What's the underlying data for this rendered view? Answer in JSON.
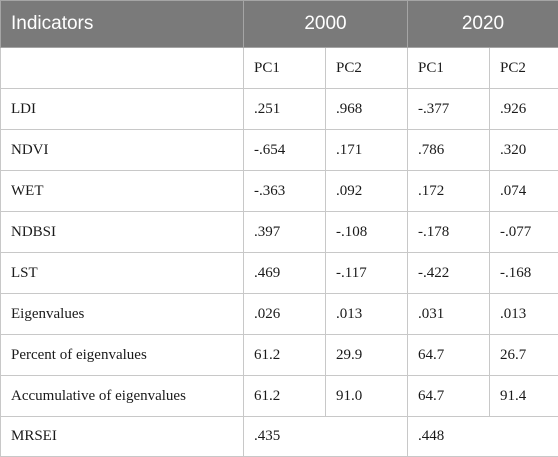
{
  "header": {
    "indicators": "Indicators",
    "year1": "2000",
    "year2": "2020"
  },
  "subheader": [
    "",
    "PC1",
    "PC2",
    "PC1",
    "PC2"
  ],
  "rows": [
    {
      "label": "LDI",
      "v": [
        ".251",
        ".968",
        "-.377",
        ".926"
      ]
    },
    {
      "label": "NDVI",
      "v": [
        "-.654",
        ".171",
        ".786",
        ".320"
      ]
    },
    {
      "label": "WET",
      "v": [
        "-.363",
        ".092",
        ".172",
        ".074"
      ]
    },
    {
      "label": "NDBSI",
      "v": [
        ".397",
        "-.108",
        "-.178",
        "-.077"
      ]
    },
    {
      "label": "LST",
      "v": [
        ".469",
        "-.117",
        "-.422",
        "-.168"
      ]
    },
    {
      "label": "Eigenvalues",
      "v": [
        ".026",
        ".013",
        ".031",
        ".013"
      ]
    },
    {
      "label": "Percent of eigenvalues",
      "v": [
        "61.2",
        "29.9",
        "64.7",
        "26.7"
      ]
    },
    {
      "label": "Accumulative of eigenvalues",
      "v": [
        "61.2",
        "91.0",
        "64.7",
        "91.4"
      ]
    }
  ],
  "mrsei": {
    "label": "MRSEI",
    "v2000": ".435",
    "v2020": ".448"
  }
}
